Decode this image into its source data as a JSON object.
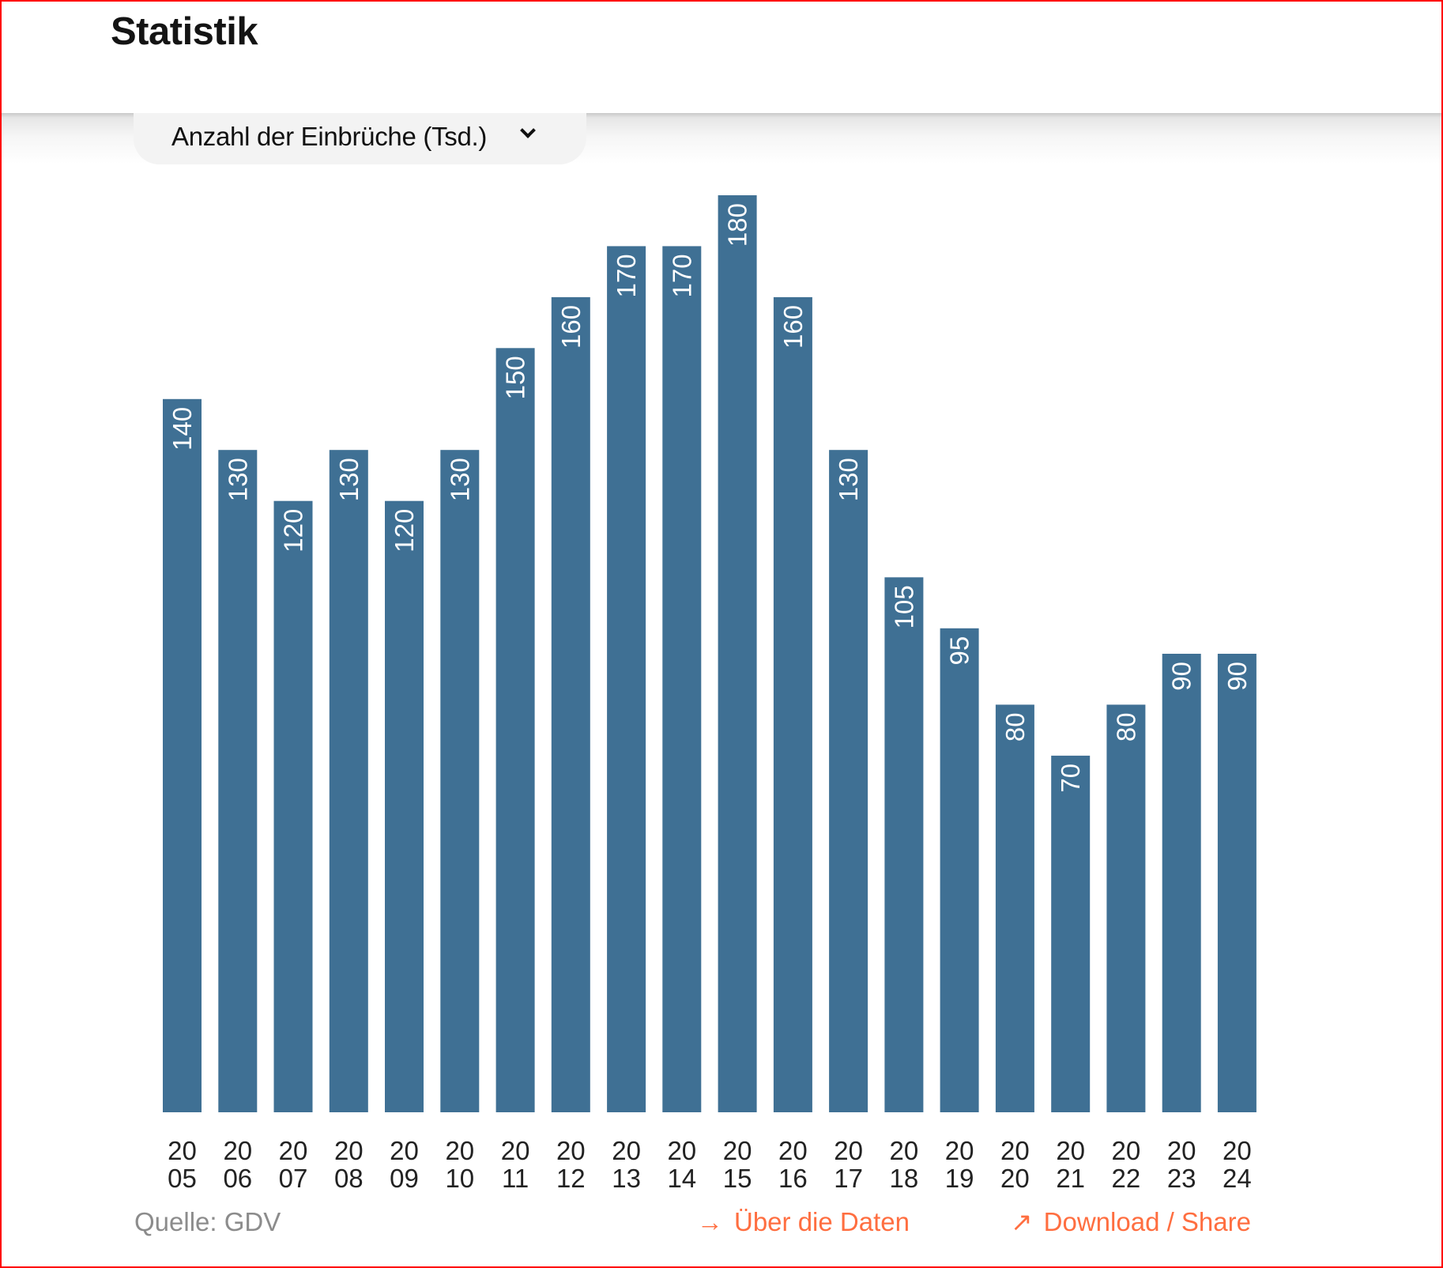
{
  "header": {
    "title": "Statistik"
  },
  "metric_selector": {
    "selected": "Anzahl der Einbrüche (Tsd.)",
    "icon": "chevron-down-icon"
  },
  "footer": {
    "source": "Quelle: GDV",
    "about_link": {
      "icon": "→",
      "label": "Über die Daten"
    },
    "download_link": {
      "icon": "↗",
      "label": "Download / Share"
    }
  },
  "colors": {
    "bar": "#3f7094",
    "link": "#ff6e40",
    "frame": "#ff0000"
  },
  "chart_data": {
    "type": "bar",
    "title": "Anzahl der Einbrüche (Tsd.)",
    "xlabel": "",
    "ylabel": "",
    "ylim": [
      0,
      180
    ],
    "grid": false,
    "categories": [
      "2005",
      "2006",
      "2007",
      "2008",
      "2009",
      "2010",
      "2011",
      "2012",
      "2013",
      "2014",
      "2015",
      "2016",
      "2017",
      "2018",
      "2019",
      "2020",
      "2021",
      "2022",
      "2023",
      "2024"
    ],
    "category_label_lines": [
      [
        "20",
        "05"
      ],
      [
        "20",
        "06"
      ],
      [
        "20",
        "07"
      ],
      [
        "20",
        "08"
      ],
      [
        "20",
        "09"
      ],
      [
        "20",
        "10"
      ],
      [
        "20",
        "11"
      ],
      [
        "20",
        "12"
      ],
      [
        "20",
        "13"
      ],
      [
        "20",
        "14"
      ],
      [
        "20",
        "15"
      ],
      [
        "20",
        "16"
      ],
      [
        "20",
        "17"
      ],
      [
        "20",
        "18"
      ],
      [
        "20",
        "19"
      ],
      [
        "20",
        "20"
      ],
      [
        "20",
        "21"
      ],
      [
        "20",
        "22"
      ],
      [
        "20",
        "23"
      ],
      [
        "20",
        "24"
      ]
    ],
    "values": [
      140,
      130,
      120,
      130,
      120,
      130,
      150,
      160,
      170,
      170,
      180,
      160,
      130,
      105,
      95,
      80,
      70,
      80,
      90,
      90
    ],
    "value_labels": [
      "140",
      "130",
      "120",
      "130",
      "120",
      "130",
      "150",
      "160",
      "170",
      "170",
      "180",
      "160",
      "130",
      "105",
      "95",
      "80",
      "70",
      "80",
      "90",
      "90"
    ],
    "source": "Quelle: GDV"
  }
}
